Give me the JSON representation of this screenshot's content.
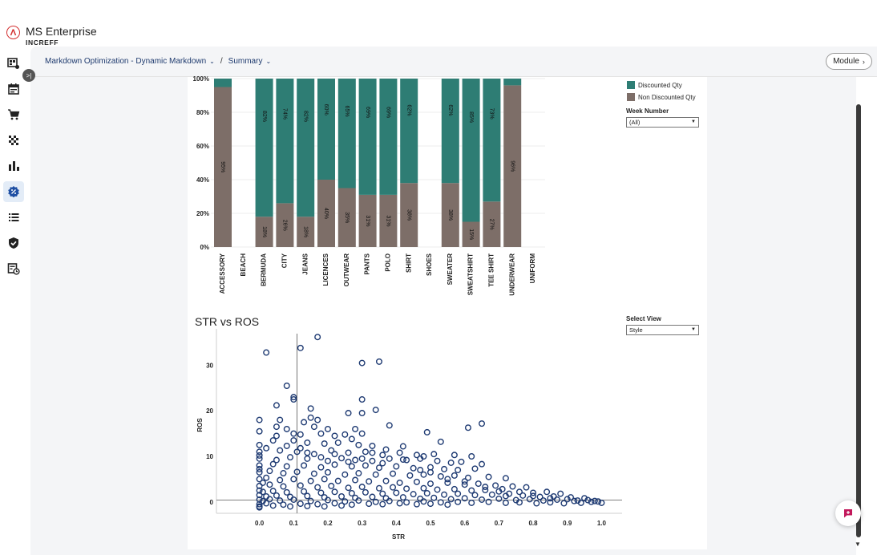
{
  "brand": {
    "title": "MS Enterprise",
    "subtitle": "INCREFF"
  },
  "header": {
    "breadcrumbs": [
      {
        "label": "Markdown Optimization - Dynamic Markdown"
      },
      {
        "label": "Summary"
      }
    ],
    "separator": "/",
    "module_button": "Module"
  },
  "nav": {
    "icons": [
      "dashboard-icon",
      "calendar-icon",
      "cart-icon",
      "grid-icon",
      "bar-chart-icon",
      "discount-icon",
      "list-icon",
      "shield-check-icon",
      "report-clock-icon"
    ],
    "active_index": 5
  },
  "legend": {
    "items": [
      {
        "label": "Discounted Qty",
        "color": "#2e7d74"
      },
      {
        "label": "Non Discounted Qty",
        "color": "#7d6e68"
      }
    ]
  },
  "filters": {
    "week_number": {
      "label": "Week Number",
      "value": "(All)"
    },
    "select_view": {
      "label": "Select View",
      "value": "Style"
    }
  },
  "scatter_title": "STR vs ROS",
  "chart_data": [
    {
      "type": "bar",
      "stacked": true,
      "categories": [
        "ACCESSORY",
        "BEACH",
        "BERMUDA",
        "CITY",
        "JEANS",
        "LICENCES",
        "OUTWEAR",
        "PANTS",
        "POLO",
        "SHIRT",
        "SHOES",
        "SWEATER",
        "SWEATSHIRT",
        "TEE SHIRT",
        "UNDERWEAR",
        "UNIFORM"
      ],
      "series": [
        {
          "name": "Non Discounted Qty",
          "values": [
            95,
            null,
            18,
            26,
            18,
            40,
            35,
            31,
            31,
            38,
            null,
            38,
            15,
            27,
            96,
            null
          ],
          "labels": [
            "95%",
            "",
            "18%",
            "26%",
            "18%",
            "40%",
            "35%",
            "31%",
            "31%",
            "38%",
            "",
            "38%",
            "15%",
            "27%",
            "96%",
            ""
          ]
        },
        {
          "name": "Discounted Qty",
          "values": [
            5,
            null,
            82,
            74,
            82,
            60,
            65,
            69,
            69,
            62,
            null,
            62,
            85,
            73,
            4,
            null
          ],
          "labels": [
            "",
            "",
            "82%",
            "74%",
            "82%",
            "60%",
            "65%",
            "69%",
            "69%",
            "62%",
            "",
            "62%",
            "85%",
            "73%",
            "",
            ""
          ]
        }
      ],
      "y_ticks": [
        "0%",
        "20%",
        "40%",
        "60%",
        "80%",
        "100%"
      ],
      "ylim": [
        0,
        100
      ]
    },
    {
      "type": "scatter",
      "xlabel": "STR",
      "ylabel": "ROS",
      "xlim": [
        -0.06,
        1.06
      ],
      "ylim": [
        -2.5,
        38
      ],
      "x_ticks": [
        "0.0",
        "0.1",
        "0.2",
        "0.3",
        "0.4",
        "0.5",
        "0.6",
        "0.7",
        "0.8",
        "0.9",
        "1.0"
      ],
      "y_ticks": [
        "0",
        "10",
        "20",
        "30"
      ],
      "reference_lines": {
        "x": 0.11,
        "y": 0.4
      },
      "points": [
        [
          0.02,
          32.8
        ],
        [
          0.12,
          33.8
        ],
        [
          0.17,
          36.2
        ],
        [
          0.3,
          30.5
        ],
        [
          0.35,
          30.8
        ],
        [
          0.08,
          25.5
        ],
        [
          0.1,
          23
        ],
        [
          0.1,
          22.5
        ],
        [
          0.3,
          22.5
        ],
        [
          0.05,
          21.2
        ],
        [
          0.15,
          20.5
        ],
        [
          0.34,
          20.2
        ],
        [
          0.0,
          18
        ],
        [
          0.06,
          18
        ],
        [
          0.15,
          18.5
        ],
        [
          0.17,
          18
        ],
        [
          0.26,
          19.5
        ],
        [
          0.3,
          19.5
        ],
        [
          0.05,
          16.5
        ],
        [
          0.08,
          16
        ],
        [
          0.13,
          17.5
        ],
        [
          0.16,
          16.5
        ],
        [
          0.2,
          16
        ],
        [
          0.28,
          16
        ],
        [
          0.38,
          16.8
        ],
        [
          0.65,
          17.2
        ],
        [
          0.61,
          16.3
        ],
        [
          0.49,
          15.3
        ],
        [
          0.0,
          15.5
        ],
        [
          0.1,
          15
        ],
        [
          0.12,
          14.8
        ],
        [
          0.18,
          15
        ],
        [
          0.22,
          14.5
        ],
        [
          0.25,
          14.8
        ],
        [
          0.3,
          15
        ],
        [
          0.27,
          13.8
        ],
        [
          0.53,
          13.2
        ],
        [
          0.0,
          12.5
        ],
        [
          0.04,
          13.5
        ],
        [
          0.08,
          12.3
        ],
        [
          0.14,
          13
        ],
        [
          0.19,
          12.8
        ],
        [
          0.23,
          13
        ],
        [
          0.29,
          12.5
        ],
        [
          0.33,
          12.3
        ],
        [
          0.37,
          11.5
        ],
        [
          0.42,
          12.2
        ],
        [
          0.0,
          11
        ],
        [
          0.06,
          11.3
        ],
        [
          0.11,
          11
        ],
        [
          0.16,
          10.5
        ],
        [
          0.21,
          11.3
        ],
        [
          0.26,
          10.8
        ],
        [
          0.31,
          11
        ],
        [
          0.36,
          10.3
        ],
        [
          0.41,
          10.8
        ],
        [
          0.46,
          10.3
        ],
        [
          0.48,
          10
        ],
        [
          0.51,
          10.5
        ],
        [
          0.57,
          10.3
        ],
        [
          0.62,
          10
        ],
        [
          0.0,
          9.5
        ],
        [
          0.05,
          9.2
        ],
        [
          0.09,
          9.8
        ],
        [
          0.14,
          9.5
        ],
        [
          0.2,
          9
        ],
        [
          0.24,
          9.6
        ],
        [
          0.28,
          9.2
        ],
        [
          0.33,
          9
        ],
        [
          0.38,
          9.5
        ],
        [
          0.43,
          9.2
        ],
        [
          0.47,
          9.5
        ],
        [
          0.52,
          9
        ],
        [
          0.56,
          8.6
        ],
        [
          0.59,
          8.8
        ],
        [
          0.65,
          8.3
        ],
        [
          0.0,
          8
        ],
        [
          0.04,
          8.3
        ],
        [
          0.08,
          7.8
        ],
        [
          0.13,
          8
        ],
        [
          0.18,
          7.6
        ],
        [
          0.22,
          8.2
        ],
        [
          0.27,
          7.8
        ],
        [
          0.31,
          8
        ],
        [
          0.35,
          7.5
        ],
        [
          0.4,
          7.8
        ],
        [
          0.45,
          7.4
        ],
        [
          0.5,
          7.6
        ],
        [
          0.54,
          7.2
        ],
        [
          0.58,
          7
        ],
        [
          0.63,
          7.3
        ],
        [
          0.0,
          6.5
        ],
        [
          0.03,
          6.8
        ],
        [
          0.07,
          6.3
        ],
        [
          0.11,
          6.6
        ],
        [
          0.16,
          6.2
        ],
        [
          0.2,
          6.5
        ],
        [
          0.25,
          6
        ],
        [
          0.29,
          6.3
        ],
        [
          0.34,
          6
        ],
        [
          0.39,
          6.2
        ],
        [
          0.44,
          5.8
        ],
        [
          0.48,
          6
        ],
        [
          0.53,
          5.6
        ],
        [
          0.57,
          5.8
        ],
        [
          0.61,
          5.3
        ],
        [
          0.67,
          5.5
        ],
        [
          0.72,
          5.2
        ],
        [
          0.0,
          5
        ],
        [
          0.02,
          5.3
        ],
        [
          0.06,
          4.8
        ],
        [
          0.1,
          5
        ],
        [
          0.15,
          4.6
        ],
        [
          0.19,
          5
        ],
        [
          0.23,
          4.6
        ],
        [
          0.28,
          4.8
        ],
        [
          0.32,
          4.5
        ],
        [
          0.37,
          4.6
        ],
        [
          0.41,
          4.2
        ],
        [
          0.46,
          4.4
        ],
        [
          0.5,
          4
        ],
        [
          0.55,
          4.2
        ],
        [
          0.6,
          3.8
        ],
        [
          0.64,
          4
        ],
        [
          0.69,
          3.6
        ],
        [
          0.74,
          3.4
        ],
        [
          0.78,
          3.2
        ],
        [
          0.0,
          3.5
        ],
        [
          0.03,
          3.8
        ],
        [
          0.07,
          3.4
        ],
        [
          0.12,
          3.6
        ],
        [
          0.17,
          3.2
        ],
        [
          0.21,
          3.5
        ],
        [
          0.26,
          3.1
        ],
        [
          0.3,
          3.3
        ],
        [
          0.35,
          3
        ],
        [
          0.39,
          3.2
        ],
        [
          0.43,
          2.9
        ],
        [
          0.48,
          3
        ],
        [
          0.52,
          2.7
        ],
        [
          0.57,
          2.8
        ],
        [
          0.62,
          2.5
        ],
        [
          0.66,
          2.6
        ],
        [
          0.7,
          2.3
        ],
        [
          0.76,
          2.2
        ],
        [
          0.8,
          2
        ],
        [
          0.84,
          2.2
        ],
        [
          0.88,
          1.8
        ],
        [
          0.0,
          2.5
        ],
        [
          0.01,
          2.2
        ],
        [
          0.04,
          2.4
        ],
        [
          0.08,
          2.1
        ],
        [
          0.13,
          2.3
        ],
        [
          0.18,
          2
        ],
        [
          0.22,
          2.2
        ],
        [
          0.27,
          1.9
        ],
        [
          0.31,
          2.1
        ],
        [
          0.36,
          1.8
        ],
        [
          0.4,
          2
        ],
        [
          0.45,
          1.7
        ],
        [
          0.49,
          1.9
        ],
        [
          0.54,
          1.6
        ],
        [
          0.58,
          1.8
        ],
        [
          0.63,
          1.5
        ],
        [
          0.68,
          1.6
        ],
        [
          0.72,
          1.3
        ],
        [
          0.77,
          1.4
        ],
        [
          0.82,
          1.1
        ],
        [
          0.86,
          1.2
        ],
        [
          0.91,
          1
        ],
        [
          0.95,
          0.8
        ],
        [
          0.0,
          1.5
        ],
        [
          0.02,
          1.2
        ],
        [
          0.05,
          1.4
        ],
        [
          0.09,
          1.1
        ],
        [
          0.14,
          1.3
        ],
        [
          0.19,
          1
        ],
        [
          0.24,
          1.2
        ],
        [
          0.28,
          0.9
        ],
        [
          0.33,
          1.1
        ],
        [
          0.37,
          0.8
        ],
        [
          0.42,
          1
        ],
        [
          0.47,
          0.7
        ],
        [
          0.51,
          0.9
        ],
        [
          0.56,
          0.6
        ],
        [
          0.6,
          0.8
        ],
        [
          0.65,
          0.5
        ],
        [
          0.7,
          0.7
        ],
        [
          0.75,
          0.4
        ],
        [
          0.79,
          0.6
        ],
        [
          0.83,
          0.3
        ],
        [
          0.87,
          0.5
        ],
        [
          0.92,
          0.2
        ],
        [
          0.96,
          0.4
        ],
        [
          0.99,
          0.1
        ],
        [
          1.0,
          -0.2
        ],
        [
          0.0,
          0.5
        ],
        [
          0.01,
          0.2
        ],
        [
          0.03,
          0.6
        ],
        [
          0.06,
          0.3
        ],
        [
          0.1,
          0.5
        ],
        [
          0.15,
          0.2
        ],
        [
          0.2,
          0.4
        ],
        [
          0.25,
          0.1
        ],
        [
          0.29,
          0.3
        ],
        [
          0.34,
          0
        ],
        [
          0.38,
          0.2
        ],
        [
          0.43,
          -0.1
        ],
        [
          0.48,
          0.1
        ],
        [
          0.53,
          -0.1
        ],
        [
          0.58,
          0
        ],
        [
          0.62,
          -0.2
        ],
        [
          0.67,
          0
        ],
        [
          0.72,
          -0.2
        ],
        [
          0.76,
          -0.1
        ],
        [
          0.81,
          -0.3
        ],
        [
          0.85,
          -0.1
        ],
        [
          0.89,
          -0.3
        ],
        [
          0.94,
          -0.2
        ],
        [
          0.97,
          0
        ],
        [
          0.0,
          -0.5
        ],
        [
          0.02,
          -0.3
        ],
        [
          0.07,
          -0.6
        ],
        [
          0.12,
          -0.4
        ],
        [
          0.17,
          -0.5
        ],
        [
          0.22,
          -0.3
        ],
        [
          0.27,
          -0.6
        ],
        [
          0.32,
          -0.4
        ],
        [
          0.36,
          -0.5
        ],
        [
          0.41,
          -0.3
        ],
        [
          0.46,
          -0.5
        ],
        [
          0.5,
          -0.4
        ],
        [
          0.55,
          -0.6
        ],
        [
          0.0,
          -1
        ],
        [
          0.04,
          -0.8
        ],
        [
          0.09,
          -1
        ],
        [
          0.14,
          -0.9
        ],
        [
          0.19,
          -1
        ],
        [
          0.24,
          -0.8
        ],
        [
          0.0,
          -1.2
        ],
        [
          0.01,
          4.2
        ],
        [
          0.0,
          7.2
        ],
        [
          0.0,
          10.2
        ],
        [
          0.02,
          11.8
        ],
        [
          0.05,
          14.5
        ],
        [
          0.1,
          13.5
        ],
        [
          0.12,
          11.8
        ],
        [
          0.14,
          10.8
        ],
        [
          0.18,
          9.8
        ],
        [
          0.22,
          10.5
        ],
        [
          0.26,
          8.8
        ],
        [
          0.3,
          9.5
        ],
        [
          0.33,
          10.8
        ],
        [
          0.36,
          8.5
        ],
        [
          0.42,
          9.3
        ],
        [
          0.47,
          7
        ],
        [
          0.5,
          6.5
        ],
        [
          0.55,
          5
        ],
        [
          0.6,
          4.5
        ],
        [
          0.66,
          3.3
        ],
        [
          0.71,
          2.8
        ],
        [
          0.73,
          1.8
        ],
        [
          0.8,
          1.3
        ],
        [
          0.85,
          0.8
        ],
        [
          0.9,
          0.6
        ],
        [
          0.93,
          0.3
        ],
        [
          0.98,
          0.2
        ]
      ]
    }
  ]
}
